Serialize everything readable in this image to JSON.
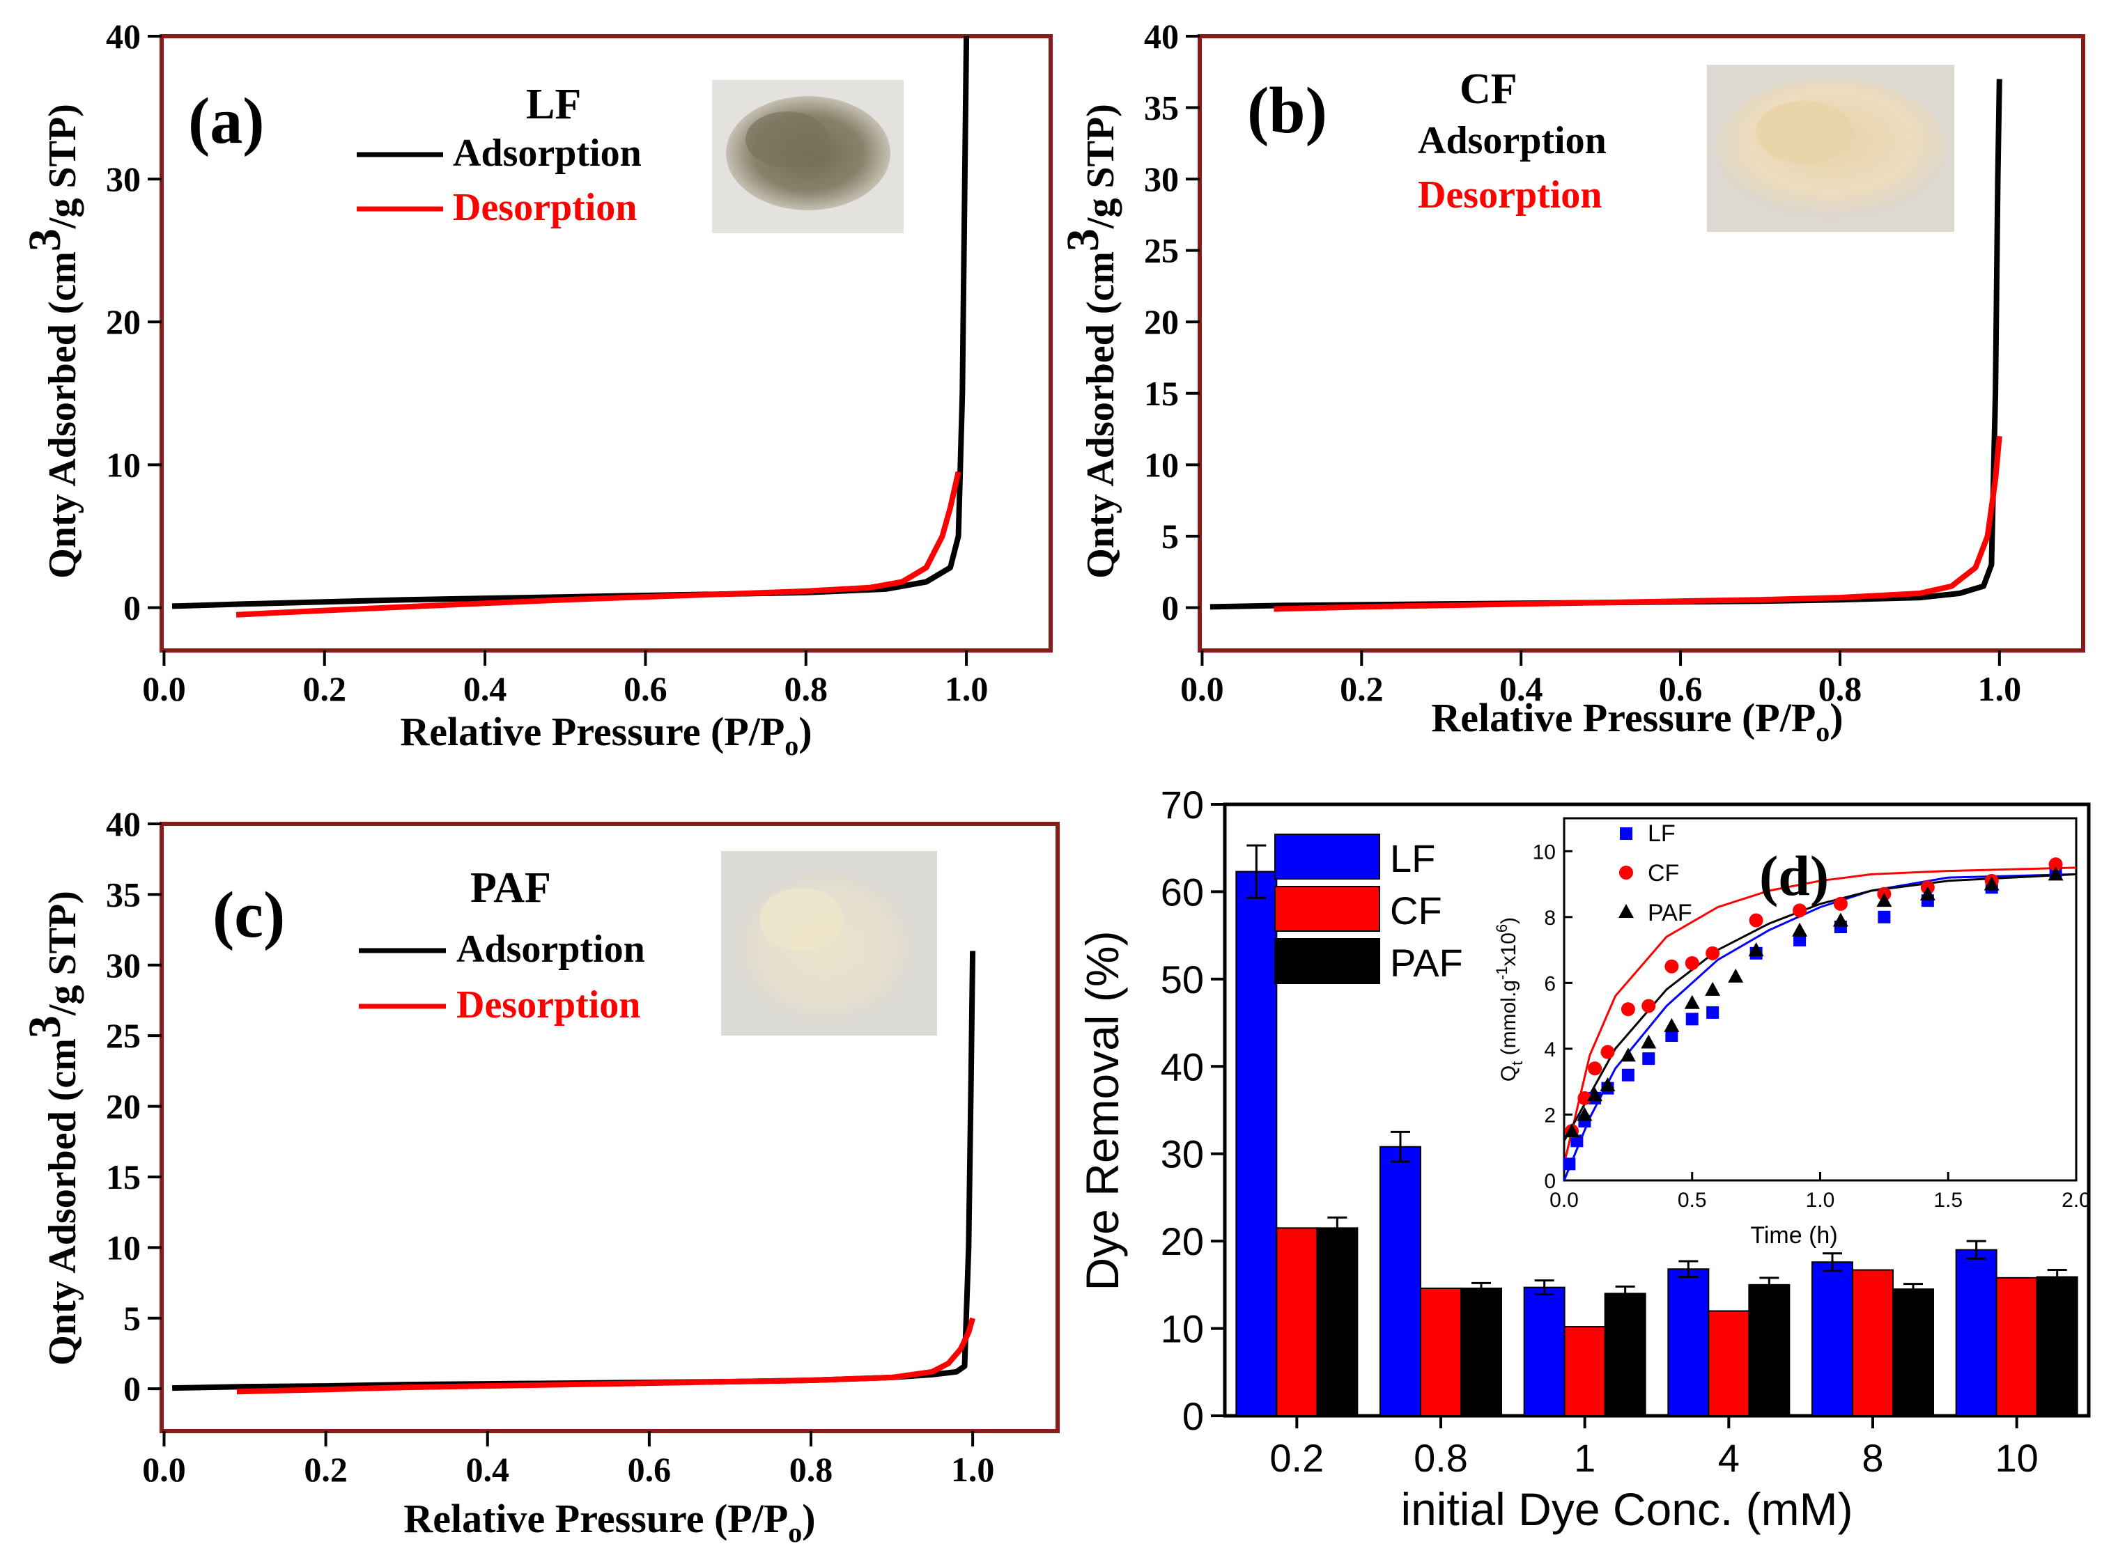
{
  "chart_data": [
    {
      "panel": "(a)",
      "type": "line",
      "sample": "LF",
      "xlabel": "Relative Pressure (P/P",
      "xlabel_sub": "o",
      "xlabel_close": ")",
      "ylabel_pre": "Qnty Adsorbed (cm",
      "ylabel_sup": "3",
      "ylabel_post": "/g STP)",
      "xlim": [
        0,
        1.1
      ],
      "ylim": [
        -3,
        40
      ],
      "xticks": [
        "0.0",
        "0.2",
        "0.4",
        "0.6",
        "0.8",
        "1.0"
      ],
      "yticks": [
        "0",
        "10",
        "20",
        "30",
        "40"
      ],
      "legend": [
        "Adsorption",
        "Desorption"
      ],
      "photo": "grey-brown-fiber-powder",
      "series": [
        {
          "name": "Adsorption",
          "color": "#000000",
          "x": [
            0.01,
            0.1,
            0.2,
            0.3,
            0.4,
            0.5,
            0.6,
            0.7,
            0.8,
            0.9,
            0.95,
            0.98,
            0.99,
            0.995,
            0.998,
            1.0
          ],
          "y": [
            0.1,
            0.25,
            0.4,
            0.55,
            0.65,
            0.75,
            0.85,
            0.95,
            1.05,
            1.3,
            1.8,
            2.8,
            5,
            15,
            30,
            40
          ]
        },
        {
          "name": "Desorption",
          "color": "#ff0000",
          "x": [
            0.09,
            0.2,
            0.3,
            0.4,
            0.5,
            0.6,
            0.7,
            0.8,
            0.88,
            0.92,
            0.95,
            0.97,
            0.98,
            0.99
          ],
          "y": [
            -0.5,
            -0.2,
            0.05,
            0.3,
            0.55,
            0.75,
            0.95,
            1.15,
            1.4,
            1.8,
            2.8,
            5,
            7,
            9.5
          ]
        }
      ]
    },
    {
      "panel": "(b)",
      "type": "line",
      "sample": "CF",
      "xlabel": "Relative Pressure (P/P",
      "xlabel_sub": "o",
      "xlabel_close": ")",
      "ylabel_pre": "Qnty Adsorbed (cm",
      "ylabel_sup": "3",
      "ylabel_post": "/g STP)",
      "xlim": [
        0,
        1.1
      ],
      "ylim": [
        -3,
        40
      ],
      "xticks": [
        "0.0",
        "0.2",
        "0.4",
        "0.6",
        "0.8",
        "1.0"
      ],
      "yticks": [
        "0",
        "5",
        "10",
        "15",
        "20",
        "25",
        "30",
        "35",
        "40"
      ],
      "legend": [
        "Adsorption",
        "Desorption"
      ],
      "photo": "cream-fiber-flakes",
      "series": [
        {
          "name": "Adsorption",
          "color": "#000000",
          "x": [
            0.01,
            0.1,
            0.2,
            0.3,
            0.4,
            0.5,
            0.6,
            0.7,
            0.8,
            0.9,
            0.95,
            0.98,
            0.99,
            0.995,
            0.998,
            1.0
          ],
          "y": [
            0.05,
            0.15,
            0.2,
            0.25,
            0.3,
            0.35,
            0.4,
            0.45,
            0.55,
            0.7,
            1.0,
            1.5,
            3,
            15,
            30,
            37
          ]
        },
        {
          "name": "Desorption",
          "color": "#ff0000",
          "x": [
            0.09,
            0.2,
            0.3,
            0.4,
            0.5,
            0.6,
            0.7,
            0.8,
            0.9,
            0.94,
            0.97,
            0.985,
            0.995,
            1.0
          ],
          "y": [
            -0.1,
            0.05,
            0.15,
            0.25,
            0.35,
            0.45,
            0.55,
            0.7,
            1.0,
            1.5,
            2.8,
            5,
            9,
            12
          ]
        }
      ]
    },
    {
      "panel": "(c)",
      "type": "line",
      "sample": "PAF",
      "xlabel": "Relative Pressure (P/P",
      "xlabel_sub": "o",
      "xlabel_close": ")",
      "ylabel_pre": "Qnty Adsorbed (cm",
      "ylabel_sup": "3",
      "ylabel_post": "/g STP)",
      "xlim": [
        0,
        1.1
      ],
      "ylim": [
        -3,
        40
      ],
      "xticks": [
        "0.0",
        "0.2",
        "0.4",
        "0.6",
        "0.8",
        "1.0"
      ],
      "yticks": [
        "0",
        "5",
        "10",
        "15",
        "20",
        "25",
        "30",
        "35",
        "40"
      ],
      "legend": [
        "Adsorption",
        "Desorption"
      ],
      "photo": "off-white-fiber-flakes",
      "series": [
        {
          "name": "Adsorption",
          "color": "#000000",
          "x": [
            0.01,
            0.1,
            0.2,
            0.3,
            0.4,
            0.5,
            0.6,
            0.7,
            0.8,
            0.9,
            0.95,
            0.98,
            0.99,
            0.995,
            0.998,
            1.0
          ],
          "y": [
            0.05,
            0.15,
            0.2,
            0.3,
            0.35,
            0.4,
            0.45,
            0.5,
            0.6,
            0.8,
            1.0,
            1.2,
            1.6,
            10,
            22,
            31
          ]
        },
        {
          "name": "Desorption",
          "color": "#ff0000",
          "x": [
            0.09,
            0.2,
            0.3,
            0.4,
            0.5,
            0.6,
            0.7,
            0.8,
            0.9,
            0.95,
            0.97,
            0.985,
            0.995,
            1.0
          ],
          "y": [
            -0.2,
            -0.05,
            0.1,
            0.2,
            0.3,
            0.4,
            0.5,
            0.6,
            0.8,
            1.2,
            1.8,
            2.8,
            4,
            5
          ]
        }
      ]
    },
    {
      "panel": "(d)",
      "type": "bar",
      "title": "",
      "xlabel": "initial Dye Conc. (mM)",
      "ylabel": "Dye Removal (%)",
      "ylim": [
        0,
        70
      ],
      "yticks": [
        "0",
        "10",
        "20",
        "30",
        "40",
        "50",
        "60",
        "70"
      ],
      "categories": [
        "0.2",
        "0.8",
        "1",
        "4",
        "8",
        "10"
      ],
      "series": [
        {
          "name": "LF",
          "color": "#0000ff",
          "values": [
            62.3,
            30.8,
            14.7,
            16.8,
            17.6,
            19.0
          ],
          "errors": [
            3.0,
            1.7,
            0.8,
            0.9,
            1.0,
            1.0
          ]
        },
        {
          "name": "CF",
          "color": "#ff0000",
          "values": [
            21.5,
            14.6,
            10.2,
            12.0,
            16.7,
            15.8
          ],
          "errors": [
            0,
            0,
            0,
            0,
            0,
            0
          ]
        },
        {
          "name": "PAF",
          "color": "#000000",
          "values": [
            21.5,
            14.6,
            14.0,
            15.0,
            14.5,
            15.9
          ],
          "errors": [
            1.2,
            0.6,
            0.8,
            0.8,
            0.6,
            0.8
          ]
        }
      ],
      "inset": {
        "type": "scatter",
        "xlabel": "Time (h)",
        "ylabel": "Q",
        "ylabel_sub": "t",
        "ylabel_unit_pre": " (mmol.g",
        "ylabel_unit_sup1": "-1",
        "ylabel_unit_mid": "x10",
        "ylabel_unit_sup2": "6",
        "ylabel_close": ")",
        "xlim": [
          0,
          2.0
        ],
        "ylim": [
          0,
          11
        ],
        "xticks": [
          "0.0",
          "0.5",
          "1.0",
          "1.5",
          "2.0"
        ],
        "yticks": [
          "0",
          "2",
          "4",
          "6",
          "8",
          "10"
        ],
        "series": [
          {
            "name": "LF",
            "color": "#0000ff",
            "marker": "square",
            "x": [
              0.02,
              0.05,
              0.08,
              0.12,
              0.17,
              0.25,
              0.33,
              0.42,
              0.5,
              0.58,
              0.75,
              0.92,
              1.08,
              1.25,
              1.42,
              1.67,
              1.92
            ],
            "y": [
              0.5,
              1.2,
              1.8,
              2.5,
              2.8,
              3.2,
              3.7,
              4.4,
              4.9,
              5.1,
              6.9,
              7.3,
              7.7,
              8.0,
              8.5,
              8.9,
              9.4
            ],
            "fit": [
              0,
              1.9,
              3.4,
              5.3,
              6.7,
              7.6,
              8.3,
              8.8,
              9.2,
              9.3
            ]
          },
          {
            "name": "CF",
            "color": "#ff0000",
            "marker": "circle",
            "x": [
              0.03,
              0.08,
              0.12,
              0.17,
              0.25,
              0.33,
              0.42,
              0.5,
              0.58,
              0.75,
              0.92,
              1.08,
              1.25,
              1.42,
              1.67,
              1.92
            ],
            "y": [
              1.5,
              2.5,
              3.4,
              3.9,
              5.2,
              5.3,
              6.5,
              6.6,
              6.9,
              7.9,
              8.2,
              8.4,
              8.7,
              8.9,
              9.1,
              9.6
            ],
            "fit": [
              0.5,
              3.8,
              5.6,
              7.4,
              8.3,
              8.8,
              9.1,
              9.3,
              9.4,
              9.5
            ]
          },
          {
            "name": "PAF",
            "color": "#000000",
            "marker": "triangle",
            "x": [
              0.03,
              0.08,
              0.12,
              0.17,
              0.25,
              0.33,
              0.42,
              0.5,
              0.58,
              0.67,
              0.75,
              0.92,
              1.08,
              1.25,
              1.42,
              1.67,
              1.92
            ],
            "y": [
              1.5,
              2.0,
              2.6,
              2.9,
              3.8,
              4.2,
              4.7,
              5.4,
              5.8,
              6.2,
              7.0,
              7.6,
              7.9,
              8.5,
              8.7,
              9.0,
              9.3
            ],
            "fit": [
              1.2,
              2.6,
              4.0,
              5.8,
              7.0,
              7.8,
              8.4,
              8.8,
              9.1,
              9.3
            ]
          }
        ],
        "fit_x": [
          0,
          0.1,
          0.2,
          0.4,
          0.6,
          0.8,
          1.0,
          1.2,
          1.5,
          2.0
        ]
      }
    }
  ]
}
